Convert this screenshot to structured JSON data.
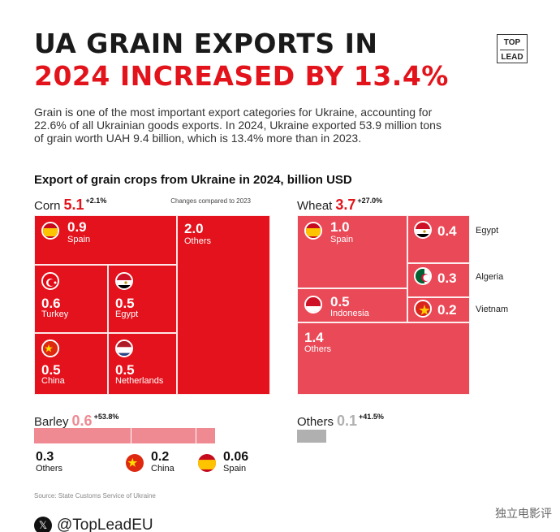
{
  "title": {
    "line1": "UA GRAIN EXPORTS IN",
    "line2": "2024 INCREASED BY 13.4%"
  },
  "logo": {
    "top": "TOP",
    "bottom": "LEAD"
  },
  "intro": "Grain is one of the most important export categories for Ukraine, accounting for 22.6% of all Ukrainian goods exports. In 2024, Ukraine exported 53.9 million tons of grain worth UAH 9.4 billion, which is 13.4% more than in 2023.",
  "subtitle": "Export of grain crops from Ukraine in 2024, billion USD",
  "note": "Changes compared to 2023",
  "colors": {
    "accent": "#e3131b",
    "corn": "#e3121c",
    "wheat": "#ea4a58",
    "barley": "#ef8a92",
    "others": "#b0b0b0"
  },
  "chart_data": {
    "type": "treemap",
    "unit": "billion USD",
    "crops": [
      {
        "name": "Corn",
        "total": "5.1",
        "change": "+2.1%",
        "items": [
          {
            "country": "Spain",
            "value": "0.9",
            "icon": "flag-spain"
          },
          {
            "country": "Others",
            "value": "2.0"
          },
          {
            "country": "Turkey",
            "value": "0.6",
            "icon": "flag-turkey"
          },
          {
            "country": "Egypt",
            "value": "0.5",
            "icon": "flag-egypt"
          },
          {
            "country": "China",
            "value": "0.5",
            "icon": "flag-china"
          },
          {
            "country": "Netherlands",
            "value": "0.5",
            "icon": "flag-netherlands"
          }
        ]
      },
      {
        "name": "Wheat",
        "total": "3.7",
        "change": "+27.0%",
        "items": [
          {
            "country": "Spain",
            "value": "1.0",
            "icon": "flag-spain"
          },
          {
            "country": "Egypt",
            "value": "0.4",
            "icon": "flag-egypt"
          },
          {
            "country": "Algeria",
            "value": "0.3",
            "icon": "flag-algeria"
          },
          {
            "country": "Indonesia",
            "value": "0.5",
            "icon": "flag-indonesia"
          },
          {
            "country": "Vietnam",
            "value": "0.2",
            "icon": "flag-vietnam"
          },
          {
            "country": "Others",
            "value": "1.4"
          }
        ]
      },
      {
        "name": "Barley",
        "total": "0.6",
        "change": "+53.8%",
        "items": [
          {
            "country": "Others",
            "value": "0.3"
          },
          {
            "country": "China",
            "value": "0.2",
            "icon": "flag-china"
          },
          {
            "country": "Spain",
            "value": "0.06",
            "icon": "flag-spain"
          }
        ]
      },
      {
        "name": "Others",
        "total": "0.1",
        "change": "+41.5%",
        "items": []
      }
    ]
  },
  "source": "Source: State Customs Service of Ukraine",
  "social": {
    "icon": "x-icon",
    "handle": "@TopLeadEU"
  },
  "watermark": "独立电影评"
}
